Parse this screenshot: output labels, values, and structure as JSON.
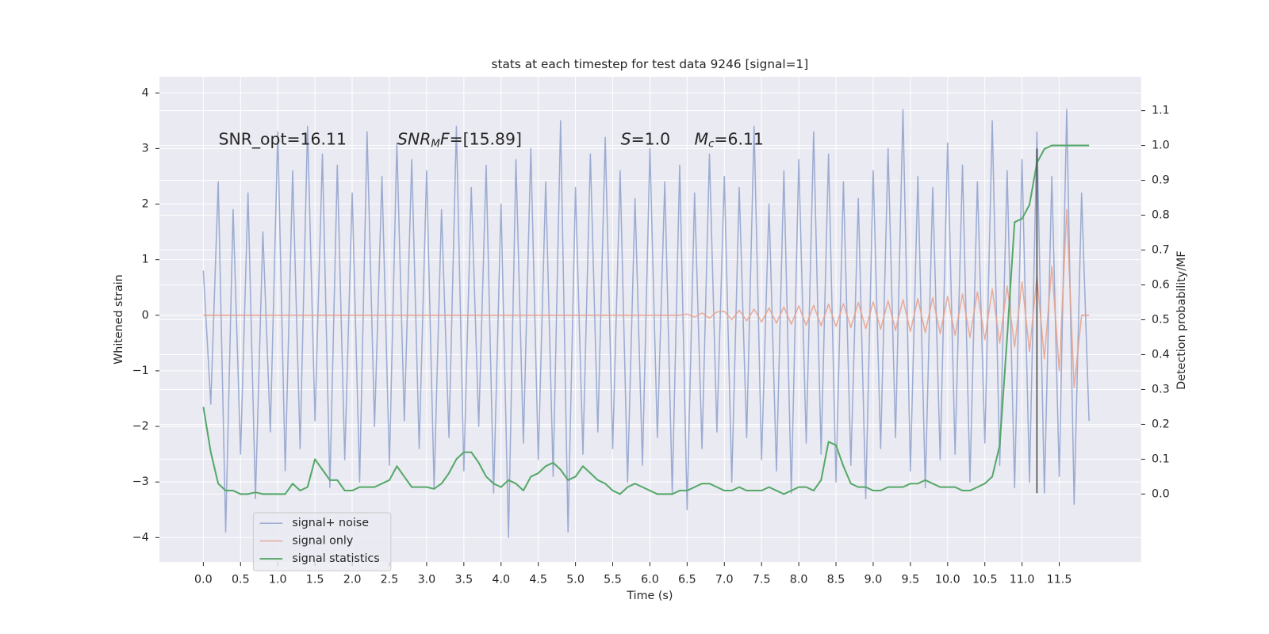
{
  "chart_data": {
    "type": "line",
    "title": "stats at each timestep for test data 9246 [signal=1]",
    "xlabel": "Time (s)",
    "ylabel": "Whitened strain",
    "y2label": "Detection probability/MF",
    "annotations": [
      [
        {
          "text": "SNR_opt=16.11"
        }
      ],
      [
        {
          "text": "SNR",
          "style": "italic"
        },
        {
          "text": "M",
          "style": "sub"
        },
        {
          "text": "F",
          "style": "italic"
        },
        {
          "text": "=[15.89]"
        }
      ],
      [
        {
          "text": "S",
          "style": "italic"
        },
        {
          "text": "=1.0"
        }
      ],
      [
        {
          "text": "M",
          "style": "italic"
        },
        {
          "text": "c",
          "style": "sub"
        },
        {
          "text": "=6.11"
        }
      ]
    ],
    "x": [
      0.0,
      0.1,
      0.2,
      0.3,
      0.4,
      0.5,
      0.6,
      0.7,
      0.8,
      0.9,
      1.0,
      1.1,
      1.2,
      1.3,
      1.4,
      1.5,
      1.6,
      1.7,
      1.8,
      1.9,
      2.0,
      2.1,
      2.2,
      2.3,
      2.4,
      2.5,
      2.6,
      2.7,
      2.8,
      2.9,
      3.0,
      3.1,
      3.2,
      3.3,
      3.4,
      3.5,
      3.6,
      3.7,
      3.8,
      3.9,
      4.0,
      4.1,
      4.2,
      4.3,
      4.4,
      4.5,
      4.6,
      4.7,
      4.8,
      4.9,
      5.0,
      5.1,
      5.2,
      5.3,
      5.4,
      5.5,
      5.6,
      5.7,
      5.8,
      5.9,
      6.0,
      6.1,
      6.2,
      6.3,
      6.4,
      6.5,
      6.6,
      6.7,
      6.8,
      6.9,
      7.0,
      7.1,
      7.2,
      7.3,
      7.4,
      7.5,
      7.6,
      7.7,
      7.8,
      7.9,
      8.0,
      8.1,
      8.2,
      8.3,
      8.4,
      8.5,
      8.6,
      8.7,
      8.8,
      8.9,
      9.0,
      9.1,
      9.2,
      9.3,
      9.4,
      9.5,
      9.6,
      9.7,
      9.8,
      9.9,
      10.0,
      10.1,
      10.2,
      10.3,
      10.4,
      10.5,
      10.6,
      10.7,
      10.8,
      10.9,
      11.0,
      11.1,
      11.2,
      11.3,
      11.4,
      11.5,
      11.6,
      11.7,
      11.8,
      11.9
    ],
    "series": [
      {
        "name": "signal+ noise",
        "color": "#8da0cb",
        "opacity": 0.85,
        "width": 1.5,
        "values": [
          0.8,
          -1.6,
          2.4,
          -3.9,
          1.9,
          -2.5,
          2.2,
          -3.3,
          1.5,
          -2.1,
          3.3,
          -2.8,
          2.6,
          -2.4,
          3.4,
          -1.9,
          2.9,
          -3.1,
          2.7,
          -2.6,
          2.2,
          -3.0,
          3.3,
          -2.0,
          2.5,
          -2.7,
          3.1,
          -1.9,
          2.8,
          -2.4,
          2.6,
          -3.1,
          1.9,
          -2.2,
          3.4,
          -2.8,
          2.3,
          -2.0,
          2.7,
          -3.2,
          2.0,
          -4.0,
          2.8,
          -2.3,
          3.0,
          -2.6,
          2.4,
          -2.9,
          3.5,
          -3.9,
          2.3,
          -2.5,
          2.9,
          -2.1,
          3.2,
          -2.4,
          2.6,
          -3.0,
          2.1,
          -2.7,
          3.0,
          -2.2,
          2.4,
          -3.2,
          2.7,
          -3.5,
          2.2,
          -2.4,
          2.9,
          -2.1,
          2.5,
          -3.0,
          2.3,
          -2.2,
          3.4,
          -2.6,
          2.0,
          -2.8,
          2.6,
          -3.2,
          2.8,
          -2.3,
          3.3,
          -2.5,
          2.9,
          -3.0,
          2.4,
          -2.7,
          2.1,
          -3.3,
          2.6,
          -2.4,
          3.0,
          -2.2,
          3.7,
          -2.8,
          2.5,
          -3.1,
          2.3,
          -2.6,
          3.1,
          -2.5,
          2.7,
          -3.0,
          2.4,
          -2.3,
          3.5,
          -2.7,
          2.6,
          -3.1,
          2.8,
          -3.0,
          3.3,
          -3.2,
          2.5,
          -2.9,
          3.7,
          -3.4,
          2.2,
          -1.9
        ]
      },
      {
        "name": "signal only",
        "color": "#e7a08a",
        "opacity": 0.85,
        "width": 1.5,
        "values": [
          0,
          0,
          0,
          0,
          0,
          0,
          0,
          0,
          0,
          0,
          0,
          0,
          0,
          0,
          0,
          0,
          0,
          0,
          0,
          0,
          0,
          0,
          0,
          0,
          0,
          0,
          0,
          0,
          0,
          0,
          0,
          0,
          0,
          0,
          0,
          0,
          0,
          0,
          0,
          0,
          0,
          0,
          0,
          0,
          0,
          0,
          0,
          0,
          0,
          0,
          0,
          0,
          0,
          0,
          0,
          0,
          0,
          0,
          0,
          0,
          0,
          0,
          0,
          0,
          0,
          0.02,
          -0.03,
          0.04,
          -0.05,
          0.06,
          0.07,
          -0.08,
          0.09,
          -0.1,
          0.11,
          -0.12,
          0.13,
          -0.14,
          0.15,
          -0.16,
          0.17,
          -0.18,
          0.18,
          -0.19,
          0.2,
          -0.2,
          0.21,
          -0.22,
          0.23,
          -0.24,
          0.24,
          -0.25,
          0.26,
          -0.27,
          0.28,
          -0.29,
          0.3,
          -0.31,
          0.32,
          -0.33,
          0.34,
          -0.36,
          0.38,
          -0.4,
          0.42,
          -0.44,
          0.47,
          -0.5,
          0.53,
          -0.57,
          0.6,
          -0.65,
          0.7,
          -0.78,
          0.88,
          -1.0,
          1.9,
          -1.3,
          0,
          0
        ]
      },
      {
        "name": "signal statistics",
        "color": "#55a868",
        "opacity": 1,
        "width": 2,
        "axis": "y2",
        "values": [
          0.25,
          0.12,
          0.03,
          0.01,
          0.01,
          0.0,
          0.0,
          0.005,
          0.0,
          0.0,
          0.0,
          0.0,
          0.03,
          0.01,
          0.02,
          0.1,
          0.07,
          0.04,
          0.04,
          0.01,
          0.01,
          0.02,
          0.02,
          0.02,
          0.03,
          0.04,
          0.08,
          0.05,
          0.02,
          0.02,
          0.02,
          0.015,
          0.03,
          0.06,
          0.1,
          0.12,
          0.12,
          0.09,
          0.05,
          0.03,
          0.02,
          0.04,
          0.03,
          0.01,
          0.05,
          0.06,
          0.08,
          0.09,
          0.07,
          0.04,
          0.05,
          0.08,
          0.06,
          0.04,
          0.03,
          0.01,
          0.0,
          0.02,
          0.03,
          0.02,
          0.01,
          0.0,
          0.0,
          0.0,
          0.01,
          0.01,
          0.02,
          0.03,
          0.03,
          0.02,
          0.01,
          0.01,
          0.02,
          0.01,
          0.01,
          0.01,
          0.02,
          0.01,
          0.0,
          0.01,
          0.02,
          0.02,
          0.01,
          0.04,
          0.15,
          0.14,
          0.08,
          0.03,
          0.02,
          0.02,
          0.01,
          0.01,
          0.02,
          0.02,
          0.02,
          0.03,
          0.03,
          0.04,
          0.03,
          0.02,
          0.02,
          0.02,
          0.01,
          0.01,
          0.02,
          0.03,
          0.05,
          0.14,
          0.45,
          0.78,
          0.79,
          0.83,
          0.95,
          0.99,
          1.0,
          1.0,
          1.0,
          1.0,
          1.0,
          1.0
        ]
      }
    ],
    "vlines": [
      {
        "x": 11.2,
        "ymin": -3.2,
        "ymax": 3.0,
        "color": "#444444"
      }
    ],
    "xlim": [
      -0.59,
      12.6
    ],
    "ylim": [
      -4.44,
      4.29
    ],
    "y2lim": [
      -0.195,
      1.197
    ],
    "xticks": [
      {
        "value": 0,
        "label": "0.0"
      },
      0.5,
      {
        "value": 1,
        "label": "1.0"
      },
      1.5,
      {
        "value": 2,
        "label": "2.0"
      },
      2.5,
      {
        "value": 3,
        "label": "3.0"
      },
      3.5,
      {
        "value": 4,
        "label": "4.0"
      },
      4.5,
      {
        "value": 5,
        "label": "5.0"
      },
      5.5,
      {
        "value": 6,
        "label": "6.0"
      },
      6.5,
      {
        "value": 7,
        "label": "7.0"
      },
      7.5,
      {
        "value": 8,
        "label": "8.0"
      },
      8.5,
      {
        "value": 9,
        "label": "9.0"
      },
      9.5,
      {
        "value": 10,
        "label": "10.0"
      },
      10.5,
      {
        "value": 11,
        "label": "11.0"
      },
      11.5
    ],
    "yticks": [
      {
        "value": -4,
        "label": "−4"
      },
      {
        "value": -3,
        "label": "−3"
      },
      {
        "value": -2,
        "label": "−2"
      },
      {
        "value": -1,
        "label": "−1"
      },
      0,
      1,
      2,
      3,
      4
    ],
    "y2ticks": [
      {
        "value": 0,
        "label": "0.0"
      },
      0.1,
      0.2,
      0.3,
      0.4,
      0.5,
      0.6,
      0.7,
      0.8,
      0.9,
      {
        "value": 1,
        "label": "1.0"
      },
      1.1
    ],
    "grid": true,
    "legend": "lower left"
  }
}
